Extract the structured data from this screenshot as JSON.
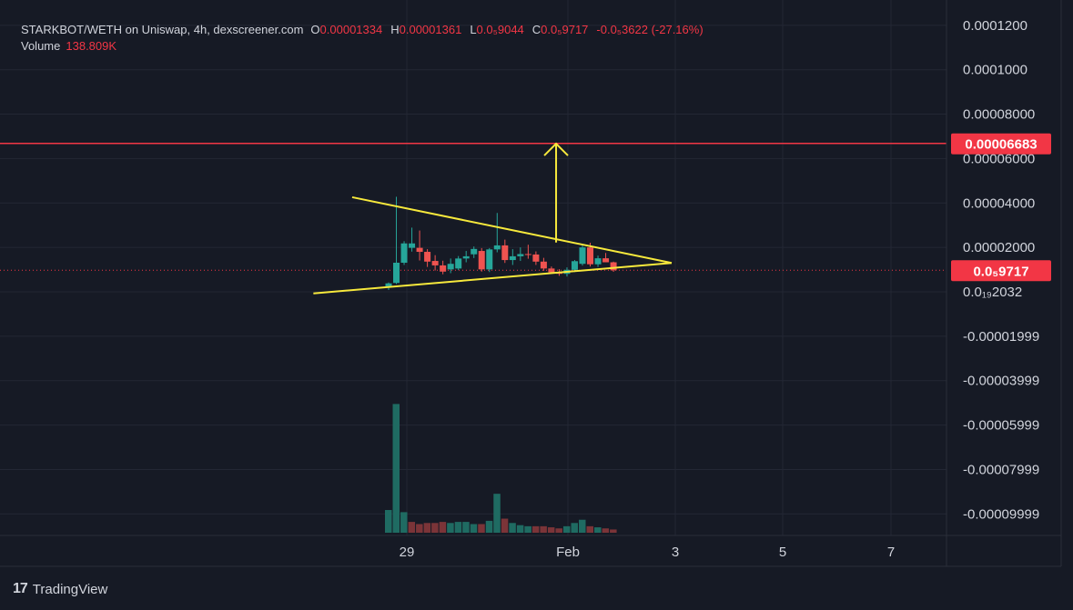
{
  "legend": {
    "symbol": "STARKBOT/WETH on Uniswap, 4h, dexscreener.com",
    "open_label": "O",
    "open_value": "0.00001334",
    "high_label": "H",
    "high_value": "0.00001361",
    "low_label": "L",
    "low_value": "0.0₅9044",
    "close_label": "C",
    "close_value": "0.0₅9717",
    "change": "-0.0₅3622 (-27.16%)",
    "volume_label": "Volume",
    "volume_value": "138.809K"
  },
  "footer": {
    "logo": "17",
    "brand": "TradingView"
  },
  "colors": {
    "background": "#161a25",
    "grid": "#232734",
    "up": "#26a69a",
    "down": "#ef5350",
    "volume_up": "#1f6b62",
    "volume_down": "#7b3438",
    "resistance": "#f23645",
    "triangle": "#f7e93c",
    "text": "#d1d4dc"
  },
  "chart_data": {
    "type": "candlestick",
    "x_ticks": [
      "29",
      "Feb",
      "3",
      "5",
      "7"
    ],
    "y_ticks": [
      "0.0001200",
      "0.0001000",
      "0.00008000",
      "0.00006000",
      "0.00004000",
      "0.00002000",
      "0.0₁₉2032",
      "-0.00001999",
      "-0.00003999",
      "-0.00005999",
      "-0.00007999",
      "-0.00009999"
    ],
    "ylim": [
      -0.0001,
      0.00012
    ],
    "price_labels": [
      {
        "text": "0.00006683",
        "value": 6.683e-05,
        "color": "#f23645"
      },
      {
        "text": "0.0₅9717",
        "value": 9.717e-06,
        "color": "#f23645"
      }
    ],
    "horizontal_line": 6.683e-05,
    "current_price": 9.717e-06,
    "candles": [
      {
        "o": 2.3e-06,
        "h": 4.2e-06,
        "l": 8e-07,
        "c": 3.8e-06
      },
      {
        "o": 4e-06,
        "h": 4.28e-05,
        "l": 3.5e-06,
        "c": 1.31e-05
      },
      {
        "o": 1.31e-05,
        "h": 2.28e-05,
        "l": 1.21e-05,
        "c": 2.18e-05
      },
      {
        "o": 1.98e-05,
        "h": 2.89e-05,
        "l": 1.81e-05,
        "c": 2.18e-05
      },
      {
        "o": 1.98e-05,
        "h": 2.76e-05,
        "l": 1.41e-05,
        "c": 1.8e-05
      },
      {
        "o": 1.8e-05,
        "h": 1.92e-05,
        "l": 1.12e-05,
        "c": 1.36e-05
      },
      {
        "o": 1.39e-05,
        "h": 1.65e-05,
        "l": 9.6e-06,
        "c": 1.19e-05
      },
      {
        "o": 1.19e-05,
        "h": 1.4e-05,
        "l": 7.9e-06,
        "c": 9.1e-06
      },
      {
        "o": 1.01e-05,
        "h": 1.5e-05,
        "l": 8.4e-06,
        "c": 1.26e-05
      },
      {
        "o": 1.05e-05,
        "h": 1.61e-05,
        "l": 9.8e-06,
        "c": 1.5e-05
      },
      {
        "o": 1.5e-05,
        "h": 1.84e-05,
        "l": 1.33e-05,
        "c": 1.6e-05
      },
      {
        "o": 1.69e-05,
        "h": 2.04e-05,
        "l": 1.52e-05,
        "c": 1.93e-05
      },
      {
        "o": 1.84e-05,
        "h": 1.97e-05,
        "l": 9.1e-06,
        "c": 1.01e-05
      },
      {
        "o": 1.01e-05,
        "h": 1.97e-05,
        "l": 8.9e-06,
        "c": 1.91e-05
      },
      {
        "o": 1.91e-05,
        "h": 3.55e-05,
        "l": 1.78e-05,
        "c": 2.09e-05
      },
      {
        "o": 2.09e-05,
        "h": 2.35e-05,
        "l": 1.3e-05,
        "c": 1.43e-05
      },
      {
        "o": 1.43e-05,
        "h": 1.92e-05,
        "l": 1.21e-05,
        "c": 1.6e-05
      },
      {
        "o": 1.6e-05,
        "h": 2e-05,
        "l": 1.39e-05,
        "c": 1.7e-05
      },
      {
        "o": 1.7e-05,
        "h": 2.12e-05,
        "l": 1.49e-05,
        "c": 1.68e-05
      },
      {
        "o": 1.68e-05,
        "h": 1.82e-05,
        "l": 1.21e-05,
        "c": 1.36e-05
      },
      {
        "o": 1.36e-05,
        "h": 1.53e-05,
        "l": 9.5e-06,
        "c": 1.05e-05
      },
      {
        "o": 1.05e-05,
        "h": 1.14e-05,
        "l": 8.4e-06,
        "c": 8.8e-06
      },
      {
        "o": 8.8e-06,
        "h": 1.02e-05,
        "l": 7.2e-06,
        "c": 8.1e-06
      },
      {
        "o": 8.1e-06,
        "h": 1.1e-05,
        "l": 6.9e-06,
        "c": 9.9e-06
      },
      {
        "o": 9.9e-06,
        "h": 1.43e-05,
        "l": 8.9e-06,
        "c": 1.38e-05
      },
      {
        "o": 1.26e-05,
        "h": 2.11e-05,
        "l": 1.18e-05,
        "c": 2e-05
      },
      {
        "o": 2e-05,
        "h": 2.21e-05,
        "l": 1.14e-05,
        "c": 1.24e-05
      },
      {
        "o": 1.24e-05,
        "h": 1.63e-05,
        "l": 1.12e-05,
        "c": 1.51e-05
      },
      {
        "o": 1.51e-05,
        "h": 1.75e-05,
        "l": 1.34e-05,
        "c": 1.33e-05
      },
      {
        "o": 1.33e-05,
        "h": 1.36e-05,
        "l": 9e-06,
        "c": 9.7e-06
      }
    ],
    "volume": [
      21,
      119,
      19,
      10,
      8,
      9,
      9,
      10,
      9,
      10,
      10,
      8,
      8,
      11,
      36,
      13,
      9,
      7,
      6,
      6,
      6,
      5,
      4,
      6,
      9,
      12,
      6,
      5,
      4,
      3
    ],
    "volume_dir": [
      "up",
      "up",
      "up",
      "down",
      "down",
      "down",
      "down",
      "down",
      "up",
      "up",
      "up",
      "up",
      "down",
      "up",
      "up",
      "down",
      "up",
      "up",
      "up",
      "down",
      "down",
      "down",
      "down",
      "up",
      "up",
      "up",
      "down",
      "up",
      "down",
      "down"
    ],
    "annotations": {
      "triangle_top_line": [
        {
          "x": -4.7,
          "y": 4.26e-05
        },
        {
          "x": 36.5,
          "y": 1.3e-05
        }
      ],
      "triangle_bottom_line": [
        {
          "x": -9.7,
          "y": -7e-07
        },
        {
          "x": 36.5,
          "y": 1.3e-05
        }
      ],
      "breakout_arrow": [
        {
          "x": 21.6,
          "y": 2.22e-05
        },
        {
          "x": 21.6,
          "y": 6.67e-05
        }
      ]
    }
  }
}
